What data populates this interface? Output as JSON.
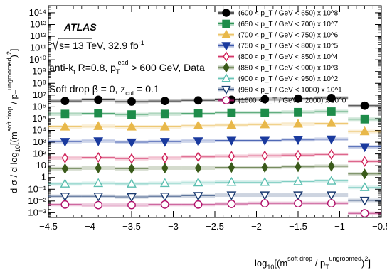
{
  "chart_data": {
    "type": "scatter",
    "x_scale": "linear",
    "y_scale": "log",
    "xlim": [
      -4.5,
      -0.5
    ],
    "ylim_exp": [
      -3.4,
      14.6
    ],
    "x_ticks": [
      -4.5,
      -4,
      -3.5,
      -3,
      -2.5,
      -2,
      -1.5,
      -1,
      -0.5
    ],
    "x_tick_labels": [
      "−4.5",
      "−4",
      "−3.5",
      "−3",
      "−2.5",
      "−2",
      "−1.5",
      "−1",
      "−0.5"
    ],
    "y_tick_exps": [
      -3,
      -2,
      -1,
      0,
      1,
      2,
      3,
      4,
      5,
      6,
      7,
      8,
      9,
      10,
      11,
      12,
      13,
      14
    ],
    "y_tick_labels": [
      "10⁻³",
      "10⁻²",
      "10⁻¹",
      "1",
      "10",
      "10²",
      "10³",
      "10⁴",
      "10⁵",
      "10⁶",
      "10⁷",
      "10⁸",
      "10⁹",
      "10¹⁰",
      "10¹¹",
      "10¹²",
      "10¹³",
      "10¹⁴"
    ],
    "xlabel": "log₁₀[(m^soft drop / p_T^ungroomed)²]",
    "ylabel": "dσ / d log₁₀[(m^soft drop / p_T^ungroomed)²]",
    "x": [
      -4.3,
      -3.9,
      -3.5,
      -3.1,
      -2.7,
      -2.3,
      -1.9,
      -1.5,
      -1.1,
      -0.7
    ],
    "series": [
      {
        "name": "(600 < p_T / GeV < 650) x 10^8",
        "color": "#000000",
        "marker": "circle-filled",
        "log10_values": [
          6.5,
          6.6,
          6.45,
          6.5,
          6.55,
          6.6,
          6.65,
          6.7,
          6.75,
          6.1
        ]
      },
      {
        "name": "(650 < p_T / GeV < 700) x 10^7",
        "color": "#1e8c4a",
        "marker": "square-filled",
        "log10_values": [
          5.4,
          5.45,
          5.35,
          5.4,
          5.45,
          5.5,
          5.5,
          5.55,
          5.6,
          4.95
        ]
      },
      {
        "name": "(700 < p_T / GeV < 750) x 10^6",
        "color": "#e8b84a",
        "marker": "triangle-up-filled",
        "log10_values": [
          4.3,
          4.35,
          4.3,
          4.3,
          4.4,
          4.45,
          4.5,
          4.55,
          4.6,
          3.9
        ]
      },
      {
        "name": "(750 < p_T / GeV < 800) x 10^5",
        "color": "#1a3a9e",
        "marker": "triangle-down-filled",
        "log10_values": [
          3.05,
          3.1,
          3.0,
          3.05,
          3.1,
          3.15,
          3.15,
          3.2,
          3.25,
          2.6
        ]
      },
      {
        "name": "(800 < p_T / GeV < 850) x 10^4",
        "color": "#d0235a",
        "marker": "diamond-open",
        "log10_values": [
          1.65,
          1.7,
          1.6,
          1.65,
          1.75,
          1.8,
          1.85,
          1.9,
          1.95,
          1.35
        ]
      },
      {
        "name": "(850 < p_T / GeV < 900) x 10^3",
        "color": "#3a5a1a",
        "marker": "diamond-filled",
        "log10_values": [
          0.75,
          0.8,
          0.75,
          0.8,
          0.8,
          0.85,
          0.85,
          0.9,
          0.95,
          0.3
        ]
      },
      {
        "name": "(900 < p_T / GeV < 950) x 10^2",
        "color": "#5bbfb0",
        "marker": "triangle-up-open",
        "log10_values": [
          -0.55,
          -0.5,
          -0.55,
          -0.5,
          -0.45,
          -0.4,
          -0.4,
          -0.35,
          -0.3,
          -0.85
        ]
      },
      {
        "name": "(950 < p_T / GeV < 1000) x 10^1",
        "color": "#1a3a70",
        "marker": "triangle-down-open",
        "log10_values": [
          -1.6,
          -1.6,
          -1.65,
          -1.6,
          -1.55,
          -1.5,
          -1.5,
          -1.5,
          -1.5,
          -1.95
        ]
      },
      {
        "name": "(1000 < p_T / GeV < 2000) x 10^0",
        "color": "#b0106a",
        "marker": "circle-open",
        "log10_values": [
          -2.3,
          -2.35,
          -2.35,
          -2.3,
          -2.3,
          -2.25,
          -2.2,
          -2.2,
          -2.2,
          -3.05
        ]
      }
    ]
  },
  "annotations": {
    "atlas": "ATLAS",
    "sqrt_s": "s= 13 TeV, 32.9 fb",
    "sqrt_s_sup": "-1",
    "jet_line": {
      "prefix": "anti-k",
      "prefix_sub": "t",
      "mid": " R=0.8, p",
      "mid_sub": "T",
      "mid_sup": "lead",
      "suffix": " > 600 GeV, Data"
    },
    "sd_line": {
      "prefix": "Soft drop β = 0, z",
      "sub": "cut",
      "suffix": " = 0.1"
    }
  }
}
